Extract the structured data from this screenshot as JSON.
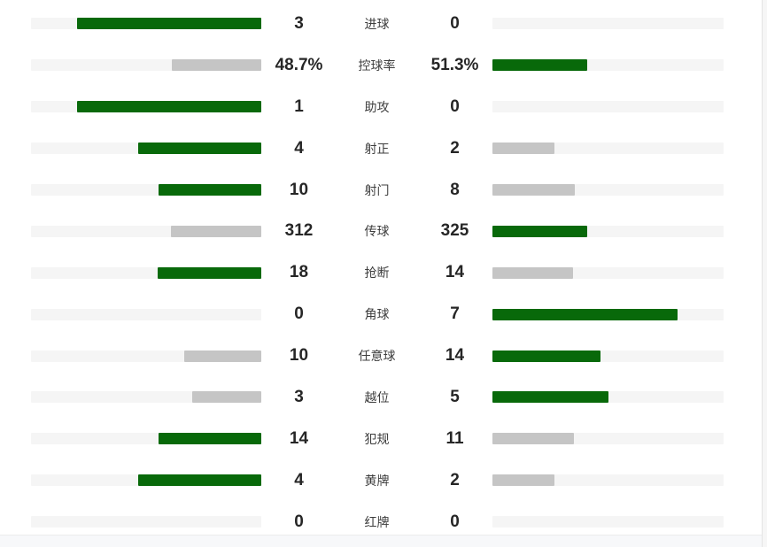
{
  "colors": {
    "win_bar": "#08690A",
    "lose_bar": "#C5C5C5",
    "track": "#F5F5F5",
    "value_text": "#262626",
    "label_text": "#3D3D3D",
    "band_bg": "#F7F8FA",
    "band_border": "#ECECEC",
    "edge_strip": "#F6F6F6",
    "edge_line": "#E4E4E4"
  },
  "chart_data": {
    "type": "bar",
    "orientation": "horizontal-paired-back-to-back",
    "title": "",
    "legend_position": "none",
    "grid": false,
    "categories": [
      "进球",
      "控球率",
      "助攻",
      "射正",
      "射门",
      "传球",
      "抢断",
      "角球",
      "任意球",
      "越位",
      "犯规",
      "黄牌",
      "红牌"
    ],
    "series": [
      {
        "name": "home",
        "values": [
          3,
          48.7,
          1,
          4,
          10,
          312,
          18,
          0,
          10,
          3,
          14,
          4,
          0
        ]
      },
      {
        "name": "away",
        "values": [
          0,
          51.3,
          0,
          2,
          8,
          325,
          14,
          7,
          14,
          5,
          11,
          2,
          0
        ]
      }
    ],
    "rows": [
      {
        "label": "进球",
        "home": 3,
        "away": 0,
        "home_display": "3",
        "away_display": "0"
      },
      {
        "label": "控球率",
        "home": 48.7,
        "away": 51.3,
        "home_display": "48.7%",
        "away_display": "51.3%"
      },
      {
        "label": "助攻",
        "home": 1,
        "away": 0,
        "home_display": "1",
        "away_display": "0"
      },
      {
        "label": "射正",
        "home": 4,
        "away": 2,
        "home_display": "4",
        "away_display": "2"
      },
      {
        "label": "射门",
        "home": 10,
        "away": 8,
        "home_display": "10",
        "away_display": "8"
      },
      {
        "label": "传球",
        "home": 312,
        "away": 325,
        "home_display": "312",
        "away_display": "325"
      },
      {
        "label": "抢断",
        "home": 18,
        "away": 14,
        "home_display": "18",
        "away_display": "14"
      },
      {
        "label": "角球",
        "home": 0,
        "away": 7,
        "home_display": "0",
        "away_display": "7"
      },
      {
        "label": "任意球",
        "home": 10,
        "away": 14,
        "home_display": "10",
        "away_display": "14"
      },
      {
        "label": "越位",
        "home": 3,
        "away": 5,
        "home_display": "3",
        "away_display": "5"
      },
      {
        "label": "犯规",
        "home": 14,
        "away": 11,
        "home_display": "14",
        "away_display": "11"
      },
      {
        "label": "黄牌",
        "home": 4,
        "away": 2,
        "home_display": "4",
        "away_display": "2"
      },
      {
        "label": "红牌",
        "home": 0,
        "away": 0,
        "home_display": "0",
        "away_display": "0"
      }
    ]
  }
}
